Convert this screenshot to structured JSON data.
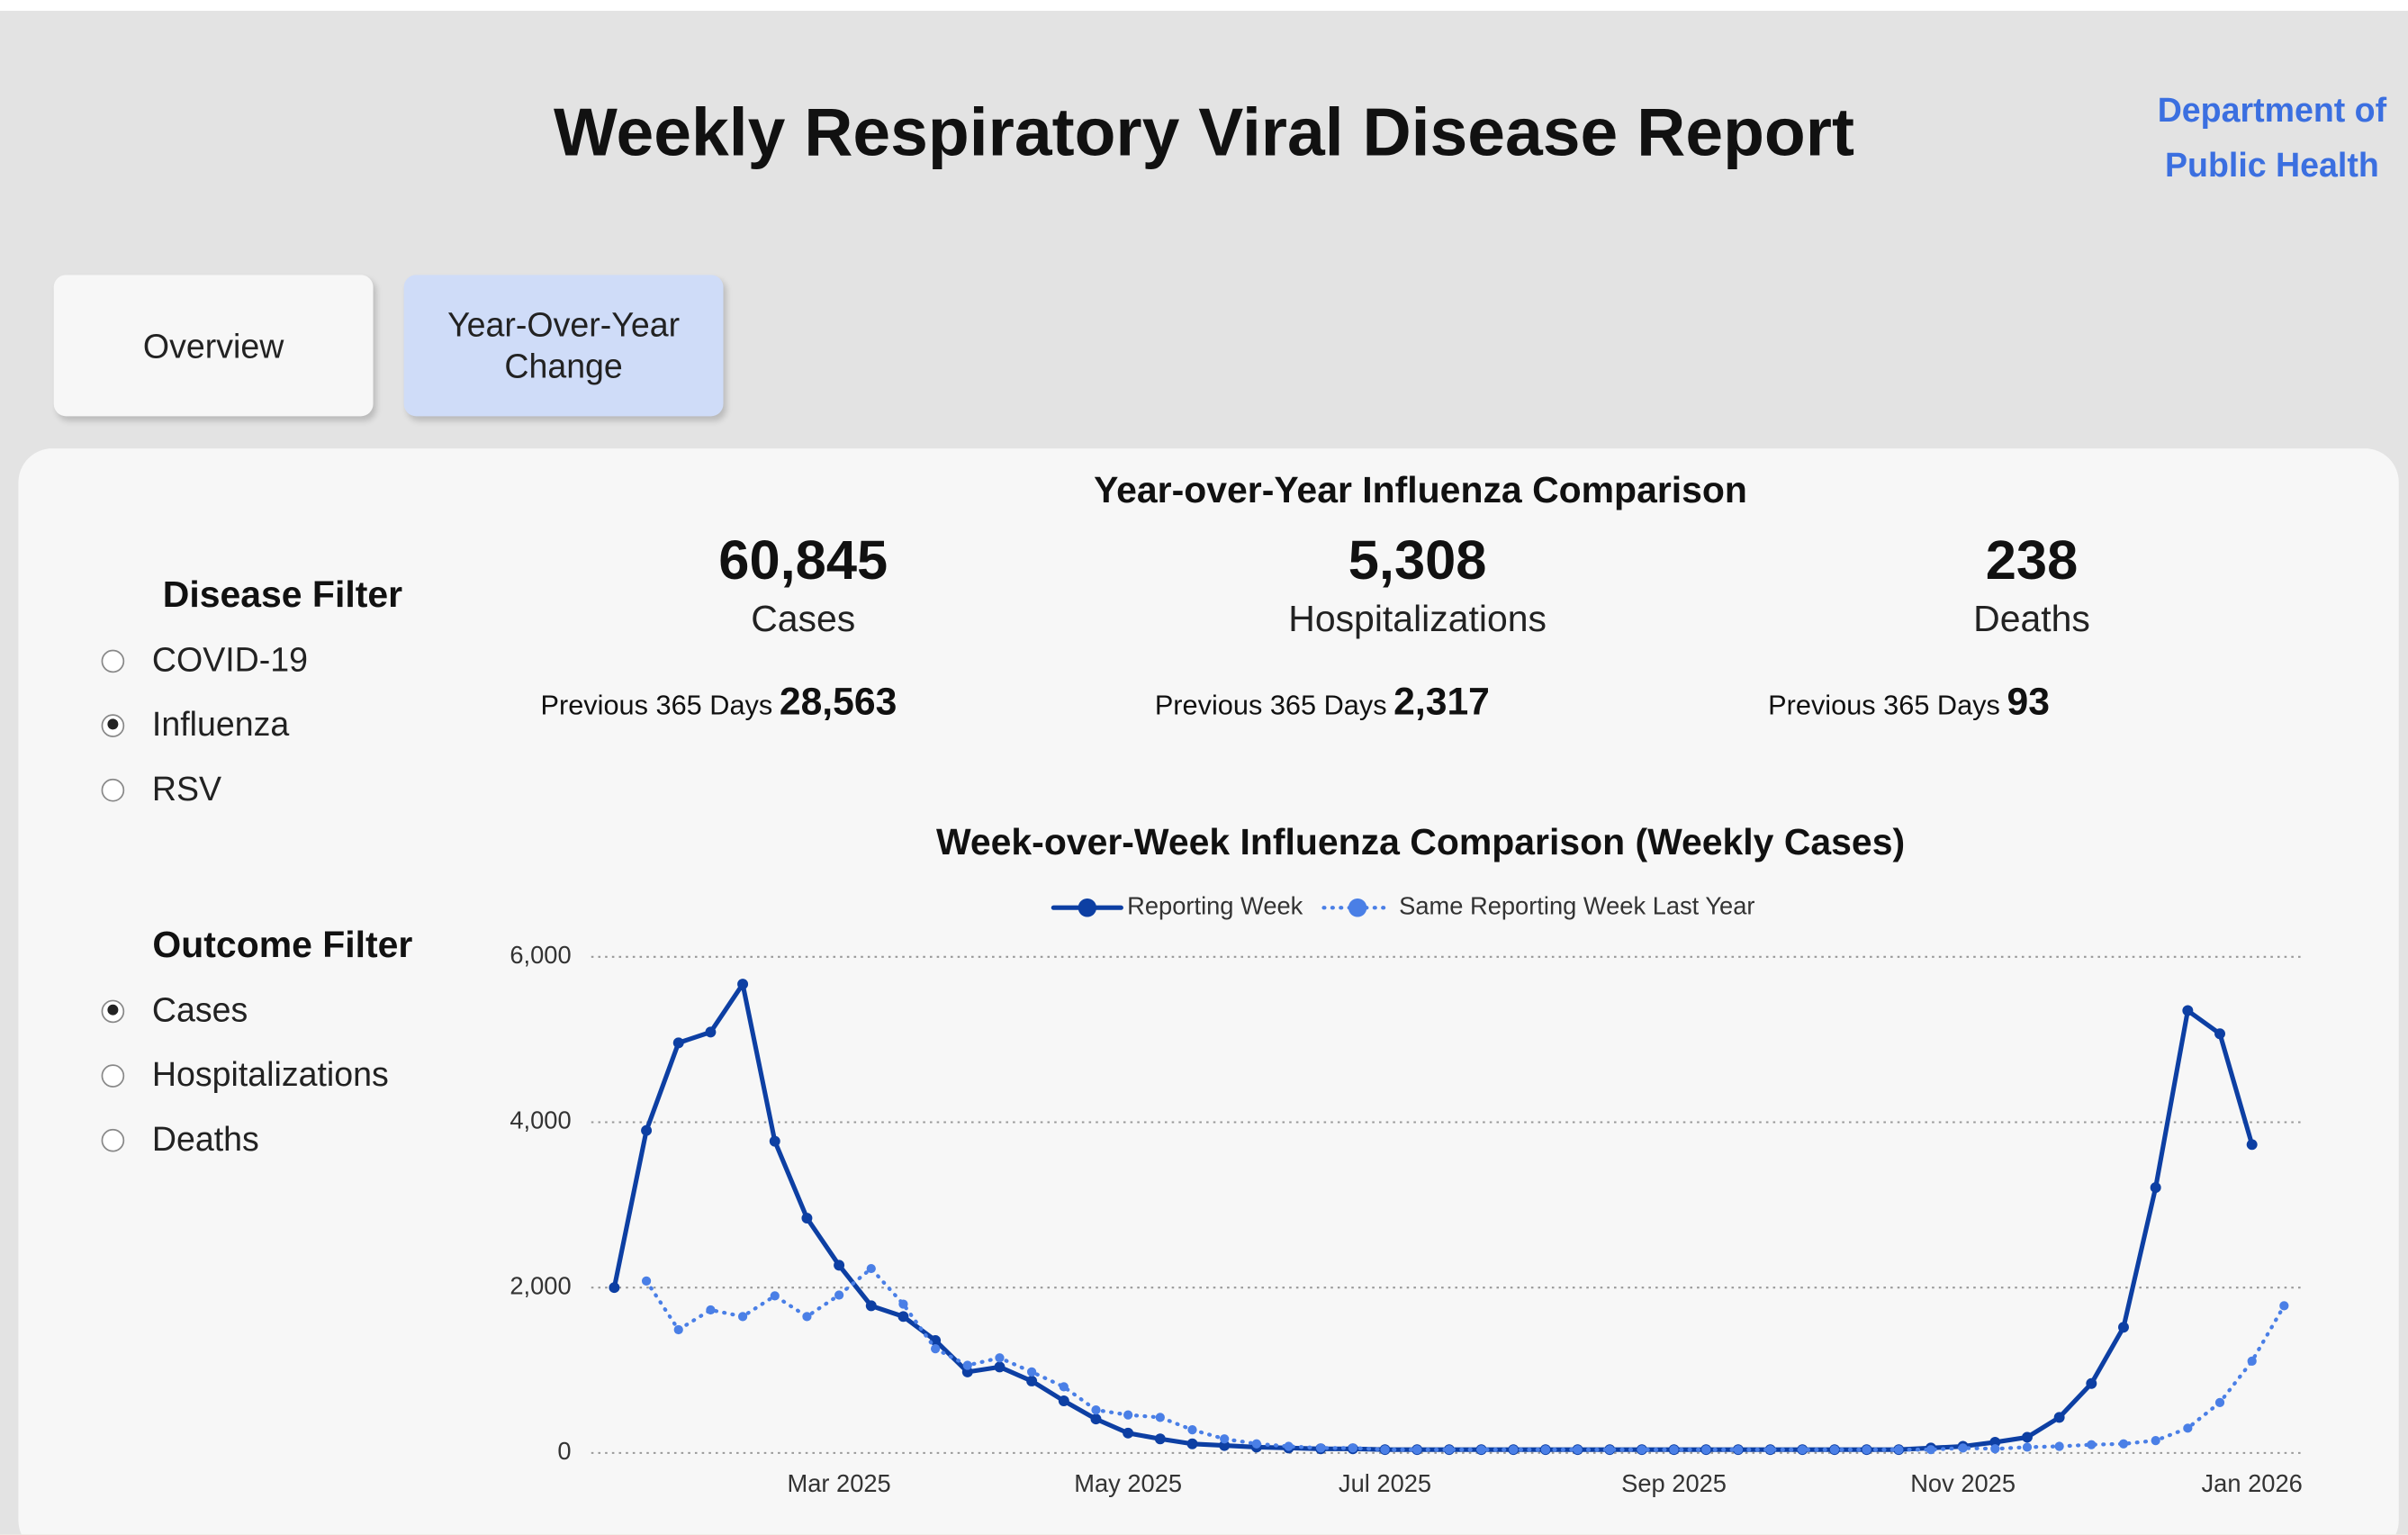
{
  "header": {
    "title": "Weekly Respiratory Viral Disease Report",
    "org": [
      "Department of",
      "Public Health"
    ]
  },
  "tabs": [
    {
      "label": "Overview",
      "active": false
    },
    {
      "label": "Year-Over-Year Change",
      "active": true
    }
  ],
  "filters": {
    "disease": {
      "title": "Disease Filter",
      "options": [
        "COVID-19",
        "Influenza",
        "RSV"
      ],
      "selected": "Influenza"
    },
    "outcome": {
      "title": "Outcome Filter",
      "options": [
        "Cases",
        "Hospitalizations",
        "Deaths"
      ],
      "selected": "Cases"
    }
  },
  "summary": {
    "title": "Year-over-Year Influenza Comparison",
    "kpis": [
      {
        "value": "60,845",
        "label": "Cases",
        "previous_label": "Previous 365 Days",
        "previous": "28,563"
      },
      {
        "value": "5,308",
        "label": "Hospitalizations",
        "previous_label": "Previous 365 Days",
        "previous": "2,317"
      },
      {
        "value": "238",
        "label": "Deaths",
        "previous_label": "Previous 365 Days",
        "previous": "93"
      }
    ]
  },
  "chart_data": {
    "type": "line",
    "title": "Week-over-Week Influenza Comparison (Weekly Cases)",
    "categories": [
      null,
      null,
      null,
      null,
      null,
      null,
      null,
      "Mar 2025",
      null,
      null,
      null,
      null,
      null,
      null,
      null,
      null,
      "May 2025",
      null,
      null,
      null,
      null,
      null,
      null,
      null,
      "Jul 2025",
      null,
      null,
      null,
      null,
      null,
      null,
      null,
      null,
      "Sep 2025",
      null,
      null,
      null,
      null,
      null,
      null,
      null,
      null,
      "Nov 2025",
      null,
      null,
      null,
      null,
      null,
      null,
      null,
      null,
      "Jan 2026",
      null
    ],
    "series": [
      {
        "name": "Reporting Week",
        "color": "#0d3fa3",
        "style": "solid",
        "values": [
          2000,
          3900,
          4960,
          5090,
          5670,
          3770,
          2840,
          2270,
          1780,
          1650,
          1360,
          980,
          1040,
          870,
          630,
          410,
          240,
          170,
          110,
          90,
          70,
          60,
          50,
          50,
          40,
          40,
          40,
          40,
          40,
          40,
          40,
          40,
          40,
          40,
          40,
          40,
          40,
          40,
          40,
          40,
          40,
          60,
          80,
          130,
          190,
          430,
          840,
          1520,
          3210,
          5350,
          5070,
          3730,
          null
        ]
      },
      {
        "name": "Same Reporting Week Last Year",
        "color": "#4a7fe6",
        "style": "dotted",
        "values": [
          null,
          2080,
          1490,
          1730,
          1650,
          1900,
          1650,
          1910,
          2230,
          1800,
          1260,
          1060,
          1150,
          980,
          800,
          520,
          460,
          430,
          280,
          170,
          110,
          80,
          60,
          60,
          40,
          40,
          40,
          40,
          40,
          40,
          40,
          40,
          40,
          40,
          40,
          40,
          40,
          40,
          40,
          40,
          40,
          40,
          60,
          50,
          70,
          80,
          100,
          110,
          150,
          300,
          610,
          1110,
          1780
        ]
      }
    ],
    "ylim": [
      0,
      6000
    ],
    "yticks": [
      0,
      {
        "value": 2000,
        "label": "2,000"
      },
      {
        "value": 4000,
        "label": "4,000"
      },
      {
        "value": 6000,
        "label": "6,000"
      }
    ],
    "grid": true,
    "legend": "top"
  }
}
